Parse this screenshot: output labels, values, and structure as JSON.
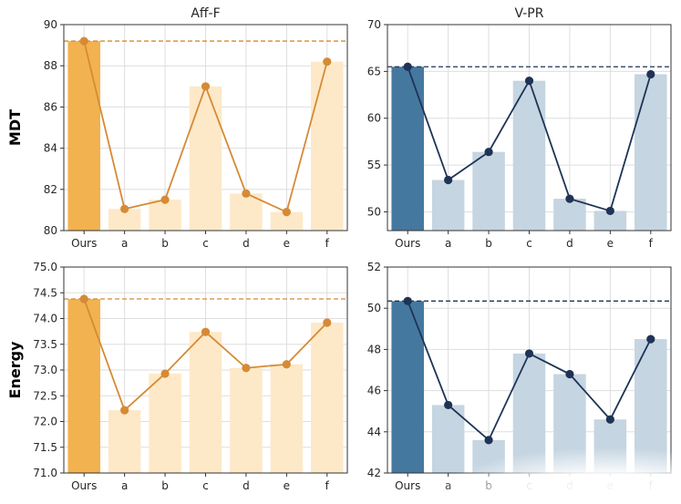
{
  "chart_data": [
    {
      "type": "bar",
      "title": "Aff-F",
      "ylabel": "MDT",
      "categories": [
        "Ours",
        "a",
        "b",
        "c",
        "d",
        "e",
        "f"
      ],
      "values": [
        89.2,
        81.05,
        81.5,
        87.0,
        81.8,
        80.9,
        88.2
      ],
      "ylim": [
        80,
        90
      ],
      "yticks": [
        "80",
        "82",
        "84",
        "86",
        "88",
        "90"
      ],
      "reference_line": 89.2,
      "highlight_color": "#f2b24f",
      "bar_color": "#fde9c8",
      "line_color": "#d68a35",
      "grid": true
    },
    {
      "type": "bar",
      "title": "V-PR",
      "ylabel": "",
      "categories": [
        "Ours",
        "a",
        "b",
        "c",
        "d",
        "e",
        "f"
      ],
      "values": [
        65.5,
        53.4,
        56.4,
        64.0,
        51.4,
        50.1,
        64.7
      ],
      "ylim": [
        48,
        70
      ],
      "yticks": [
        "50",
        "55",
        "60",
        "65",
        "70"
      ],
      "reference_line": 65.5,
      "highlight_color": "#45789e",
      "bar_color": "#c5d5e1",
      "line_color": "#1f3356",
      "grid": true
    },
    {
      "type": "bar",
      "title": "",
      "ylabel": "Energy",
      "categories": [
        "Ours",
        "a",
        "b",
        "c",
        "d",
        "e",
        "f"
      ],
      "values": [
        74.38,
        72.22,
        72.93,
        73.74,
        73.04,
        73.11,
        73.92
      ],
      "ylim": [
        71,
        75
      ],
      "yticks": [
        "71.0",
        "71.5",
        "72.0",
        "72.5",
        "73.0",
        "73.5",
        "74.0",
        "74.5",
        "75.0"
      ],
      "reference_line": 74.38,
      "highlight_color": "#f2b24f",
      "bar_color": "#fde9c8",
      "line_color": "#d68a35",
      "grid": true
    },
    {
      "type": "bar",
      "title": "",
      "ylabel": "",
      "categories": [
        "Ours",
        "a",
        "b",
        "c",
        "d",
        "e",
        "f"
      ],
      "values": [
        50.35,
        45.3,
        43.6,
        47.8,
        46.8,
        44.6,
        48.5
      ],
      "ylim": [
        42,
        52
      ],
      "yticks": [
        "42",
        "44",
        "46",
        "48",
        "50",
        "52"
      ],
      "reference_line": 50.35,
      "highlight_color": "#45789e",
      "bar_color": "#c5d5e1",
      "line_color": "#1f3356",
      "grid": true
    }
  ]
}
